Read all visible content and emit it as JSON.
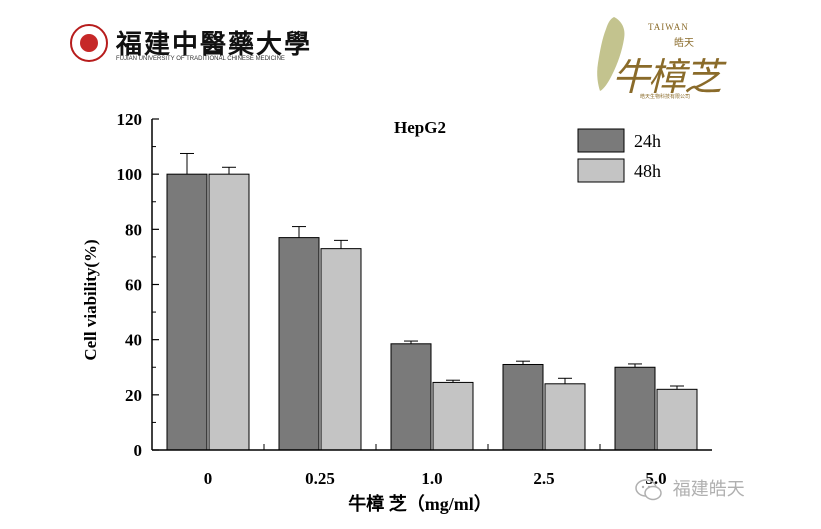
{
  "logos": {
    "university_cn": "福建中醫藥大學",
    "university_en": "FUJIAN UNIVERSITY OF TRADITIONAL CHINESE MEDICINE",
    "brand_taiwan": "TAIWAN",
    "brand_haotian": "皓天",
    "brand_name": "牛樟芝",
    "brand_small": "皓天生物科技有限公司"
  },
  "watermark": {
    "text": "福建皓天"
  },
  "colors": {
    "bar_24h": "#7a7a7a",
    "bar_48h": "#c4c4c4",
    "axis": "#000000",
    "brand_gold": "#8a6b2a",
    "seal_red": "#c62828"
  },
  "chart_data": {
    "type": "bar",
    "title": "HepG2",
    "xlabel": "牛樟 芝（mg/ml）",
    "ylabel": "Cell viability(%)",
    "categories": [
      "0",
      "0.25",
      "1.0",
      "2.5",
      "5.0"
    ],
    "series": [
      {
        "name": "24h",
        "values": [
          100,
          77,
          38.5,
          31,
          30
        ],
        "errors": [
          7.5,
          4,
          1,
          1.2,
          1.2
        ]
      },
      {
        "name": "48h",
        "values": [
          100,
          73,
          24.5,
          24,
          22
        ],
        "errors": [
          2.5,
          3,
          0.8,
          2,
          1.2
        ]
      }
    ],
    "ylim": [
      0,
      120
    ],
    "yticks": [
      0,
      20,
      40,
      60,
      80,
      100,
      120
    ],
    "legend_position": "top-right",
    "grid": false
  }
}
